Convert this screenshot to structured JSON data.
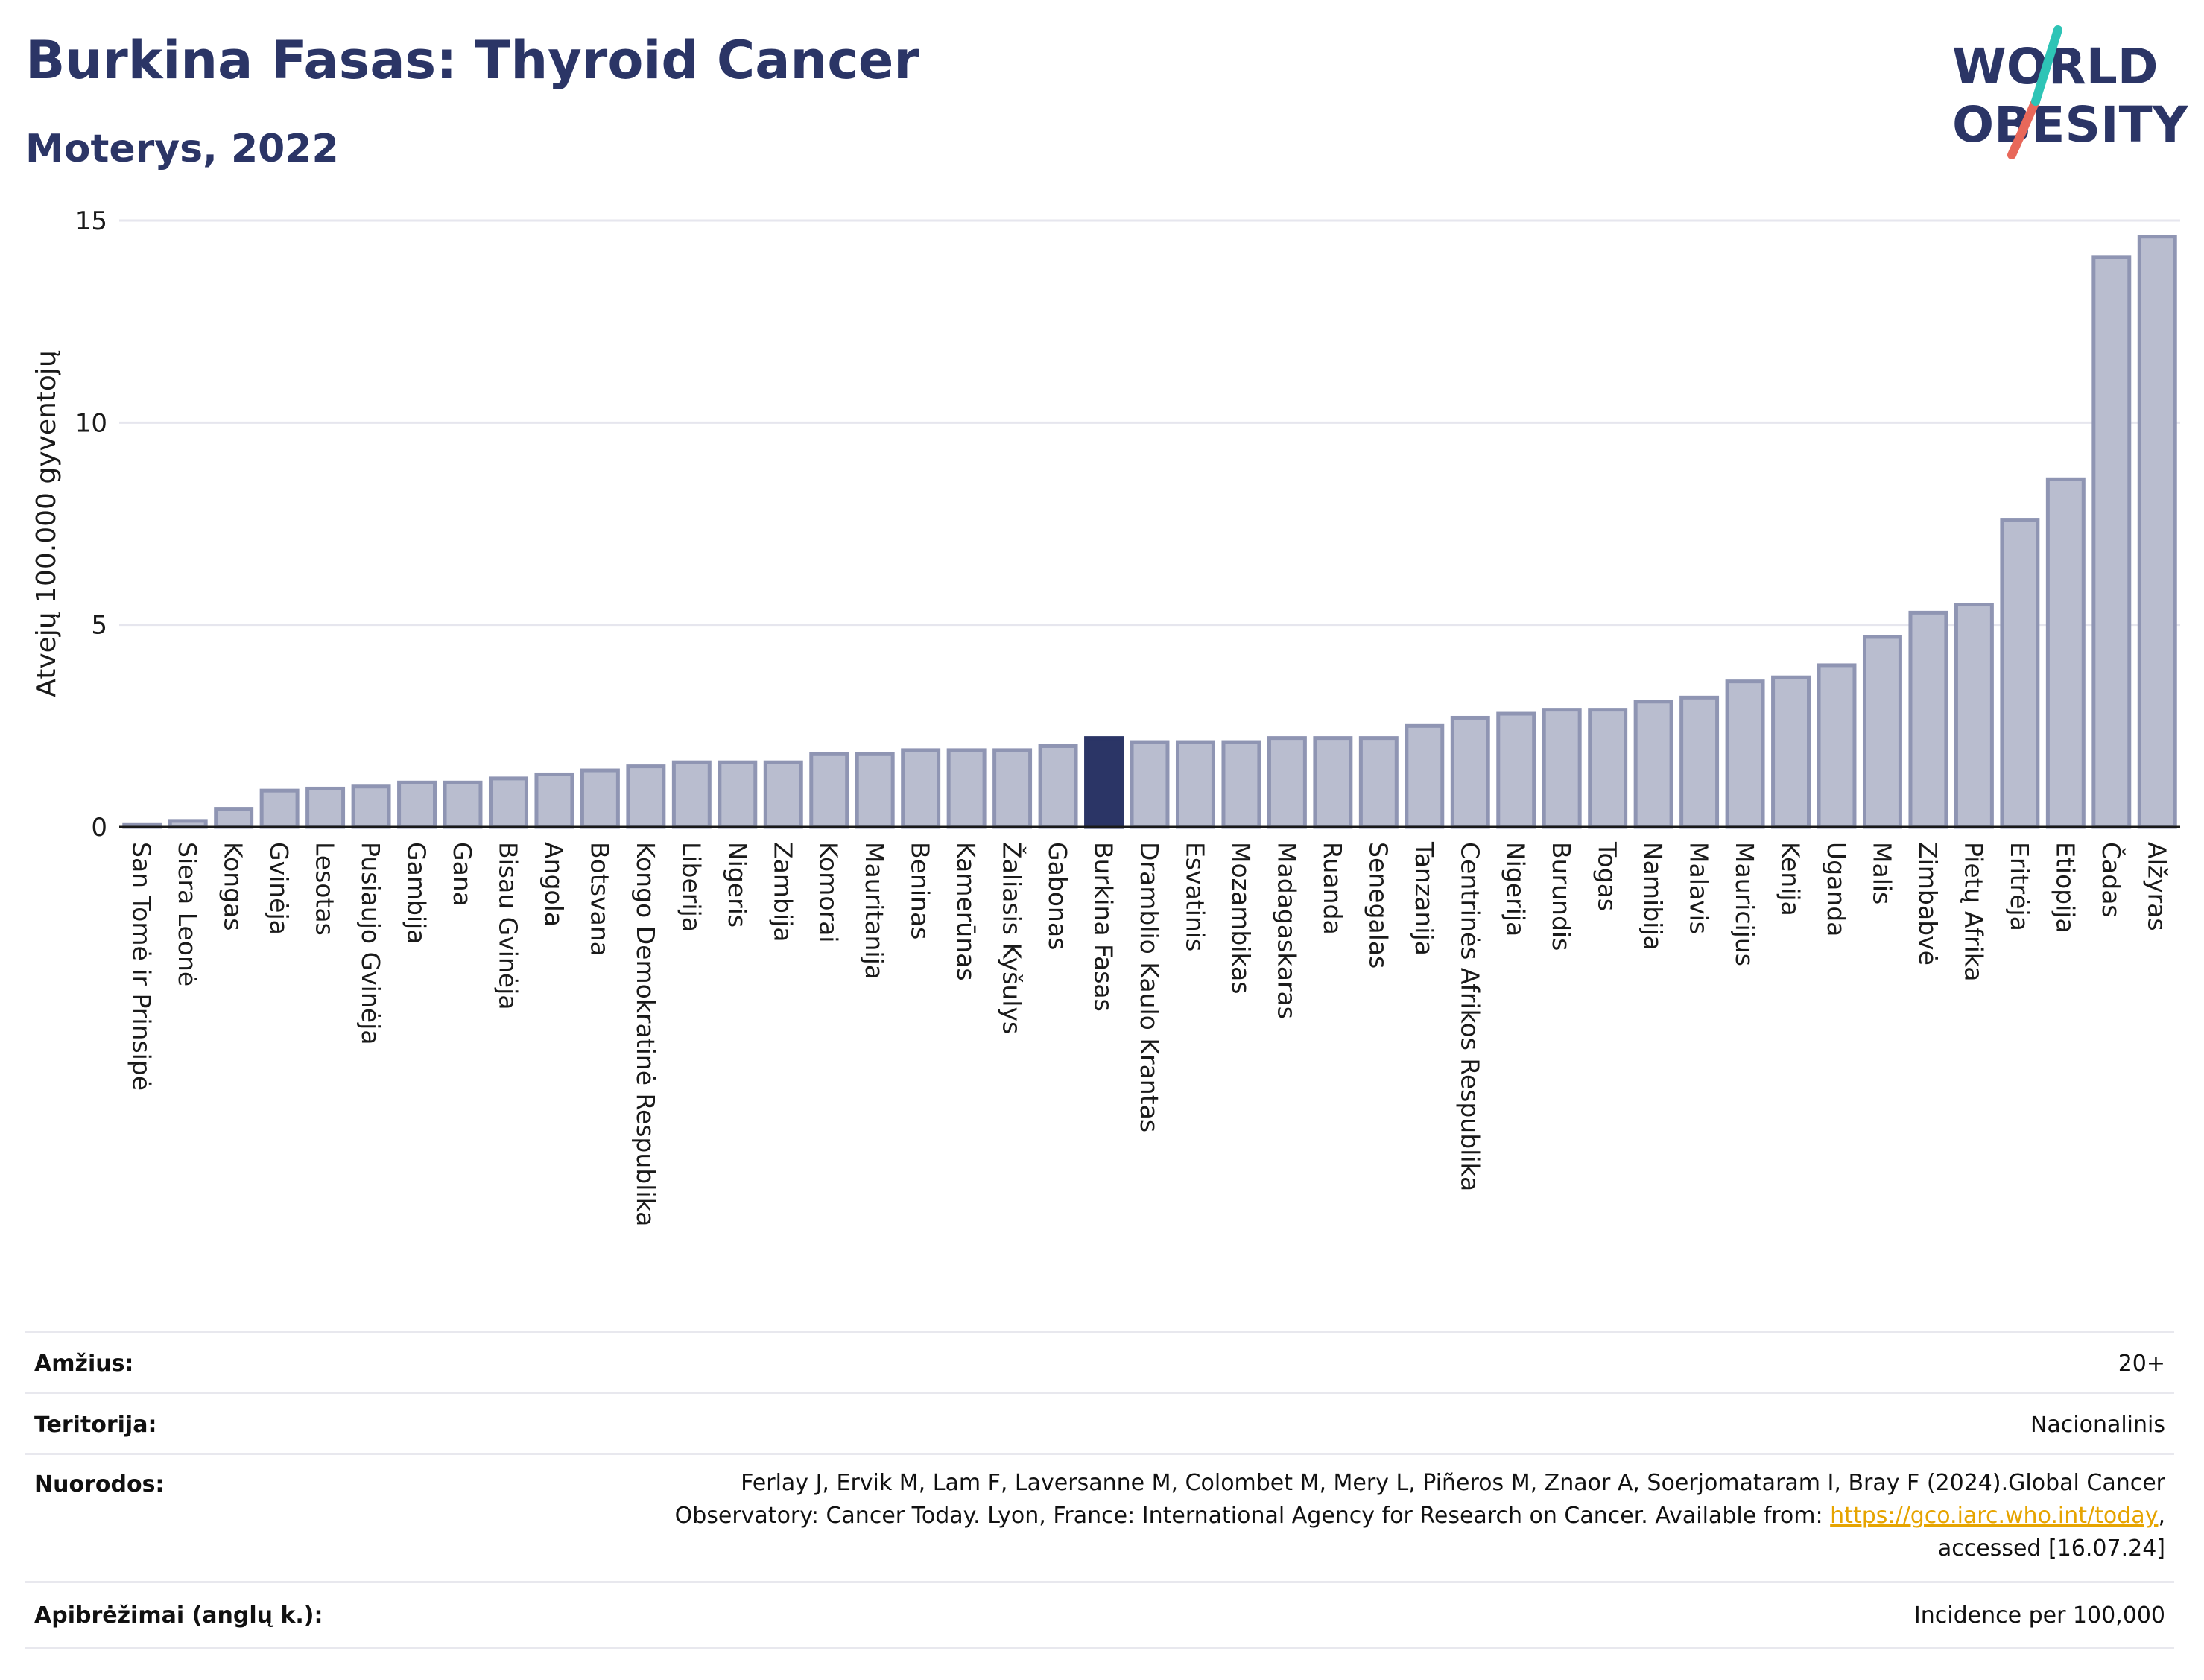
{
  "header": {
    "title": "Burkina Fasas: Thyroid Cancer",
    "subtitle": "Moterys, 2022"
  },
  "logo": {
    "line1": "WORLD",
    "line2": "OBESITY"
  },
  "chart_data": {
    "type": "bar",
    "ylabel": "Atvejų 100.000 gyventojų",
    "xlabel": "",
    "ylim": [
      0,
      15
    ],
    "yticks": [
      0,
      5,
      10,
      15
    ],
    "grid": true,
    "highlight": "Burkina Fasas",
    "colors": {
      "bar": "#b9bdcf",
      "bar_edge": "#8f95b3",
      "highlight": "#2b3566",
      "grid": "#e6e6ee"
    },
    "categories": [
      "San Tomė ir Prinsipė",
      "Siera Leonė",
      "Kongas",
      "Gvinėja",
      "Lesotas",
      "Pusiaujo Gvinėja",
      "Gambija",
      "Gana",
      "Bisau Gvinėja",
      "Angola",
      "Botsvana",
      "Kongo Demokratinė Respublika",
      "Liberija",
      "Nigeris",
      "Zambija",
      "Komorai",
      "Mauritanija",
      "Beninas",
      "Kamerūnas",
      "Žaliasis Kyšulys",
      "Gabonas",
      "Burkina Fasas",
      "Dramblio Kaulo Krantas",
      "Esvatinis",
      "Mozambikas",
      "Madagaskaras",
      "Ruanda",
      "Senegalas",
      "Tanzanija",
      "Centrinės Afrikos Respublika",
      "Nigerija",
      "Burundis",
      "Togas",
      "Namibija",
      "Malavis",
      "Mauricijus",
      "Kenija",
      "Uganda",
      "Malis",
      "Zimbabvė",
      "Pietų Afrika",
      "Eritrėja",
      "Etiopija",
      "Čadas",
      "Alžyras"
    ],
    "values": [
      0.05,
      0.15,
      0.45,
      0.9,
      0.95,
      1.0,
      1.1,
      1.1,
      1.2,
      1.3,
      1.4,
      1.5,
      1.6,
      1.6,
      1.6,
      1.8,
      1.8,
      1.9,
      1.9,
      1.9,
      2.0,
      2.2,
      2.1,
      2.1,
      2.1,
      2.2,
      2.2,
      2.2,
      2.5,
      2.7,
      2.8,
      2.9,
      2.9,
      3.1,
      3.2,
      3.6,
      3.7,
      4.0,
      4.7,
      5.3,
      5.5,
      7.6,
      8.6,
      14.1,
      14.6
    ]
  },
  "info": {
    "age_label": "Amžius:",
    "age_value": "20+",
    "territory_label": "Teritorija:",
    "territory_value": "Nacionalinis",
    "refs_label": "Nuorodos:",
    "refs_line1": "Ferlay J, Ervik M, Lam F, Laversanne M, Colombet M, Mery L, Piñeros M, Znaor A, Soerjomataram I, Bray F (2024).Global Cancer",
    "refs_line2_pre": "Observatory: Cancer Today. Lyon, France: International Agency for Research on Cancer. Available from: ",
    "refs_link": "https://gco.iarc.who.int/today",
    "refs_line2_post": ",",
    "refs_line3": "accessed [16.07.24]",
    "definitions_label": "Apibrėžimai (anglų k.):",
    "definitions_value": "Incidence per 100,000"
  }
}
